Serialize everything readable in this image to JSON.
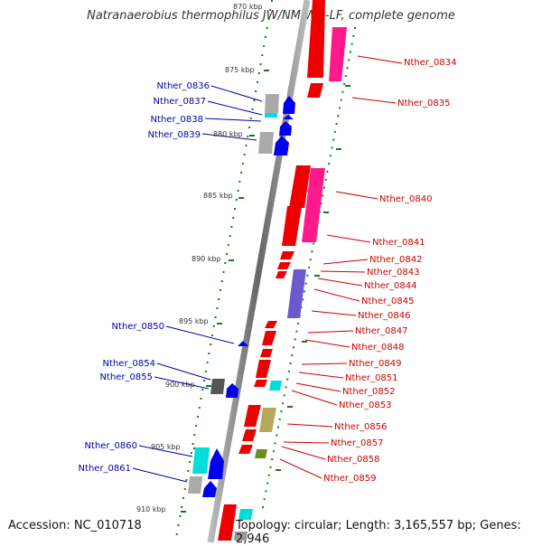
{
  "title": "Natranaerobius thermophilus JW/NM-WN-LF, complete genome",
  "footer": {
    "accession": "Accession: NC_010718",
    "stats": "Topology: circular; Length: 3,165,557 bp; Genes: 2,946"
  },
  "scale_labels": [
    "870 kbp",
    "875 kbp",
    "880 kbp",
    "885 kbp",
    "890 kbp",
    "895 kbp",
    "900 kbp",
    "905 kbp",
    "910 kbp"
  ],
  "right_genes": [
    "Nther_0834",
    "Nther_0835",
    "Nther_0840",
    "Nther_0841",
    "Nther_0842",
    "Nther_0843",
    "Nther_0844",
    "Nther_0845",
    "Nther_0846",
    "Nther_0847",
    "Nther_0848",
    "Nther_0849",
    "Nther_0851",
    "Nther_0852",
    "Nther_0853",
    "Nther_0856",
    "Nther_0857",
    "Nther_0858",
    "Nther_0859"
  ],
  "left_genes": [
    "Nther_0836",
    "Nther_0837",
    "Nther_0838",
    "Nther_0839",
    "Nther_0850",
    "Nther_0854",
    "Nther_0855",
    "Nther_0860",
    "Nther_0861"
  ],
  "colors": {
    "forward_label": "#cc0000",
    "reverse_label": "#0000aa",
    "gene_red": "#ee0000",
    "gene_pink": "#ff1a8c",
    "gene_blue": "#0000ee",
    "gene_cyan": "#00dddd",
    "gene_gray": "#999999",
    "gene_purple": "#6a5acd",
    "gene_olive": "#b5aa5a",
    "scale_green": "#1a7a1a",
    "backbone": "#888888"
  }
}
